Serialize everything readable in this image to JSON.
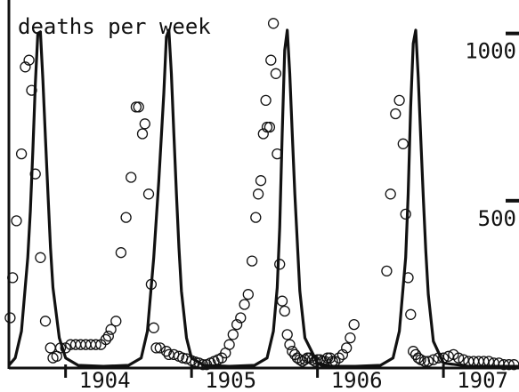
{
  "chart_data": {
    "type": "scatter",
    "title": "deaths per week",
    "xlabel": "",
    "ylabel": "",
    "xlim": [
      1903.55,
      1907.6
    ],
    "ylim": [
      0,
      1100
    ],
    "grid": false,
    "axes": {
      "y_side": "right",
      "y_ticks": [
        {
          "value": 500,
          "label": "500"
        },
        {
          "value": 1000,
          "label": "1000"
        }
      ],
      "x_ticks": [
        {
          "value": 1904.0,
          "label": "1904"
        },
        {
          "value": 1905.0,
          "label": "1905"
        },
        {
          "value": 1906.0,
          "label": "1906"
        },
        {
          "value": 1907.0,
          "label": "1907"
        }
      ]
    },
    "series": [
      {
        "kind": "line",
        "color": "#111111",
        "x": [
          1903.55,
          1903.6,
          1903.65,
          1903.7,
          1903.72,
          1903.74,
          1903.76,
          1903.78,
          1903.8,
          1903.82,
          1903.84,
          1903.86,
          1903.88,
          1903.9,
          1903.95,
          1904.0,
          1904.1,
          1904.3,
          1904.5,
          1904.6,
          1904.65,
          1904.7,
          1904.74,
          1904.78,
          1904.8,
          1904.82,
          1904.84,
          1904.86,
          1904.88,
          1904.9,
          1904.92,
          1904.96,
          1905.0,
          1905.1,
          1905.3,
          1905.5,
          1905.6,
          1905.65,
          1905.68,
          1905.7,
          1905.72,
          1905.74,
          1905.76,
          1905.78,
          1905.8,
          1905.82,
          1905.86,
          1905.9,
          1906.0,
          1906.1,
          1906.3,
          1906.5,
          1906.6,
          1906.65,
          1906.7,
          1906.72,
          1906.74,
          1906.76,
          1906.78,
          1906.8,
          1906.82,
          1906.84,
          1906.86,
          1906.88,
          1906.92,
          1907.0,
          1907.2,
          1907.4,
          1907.6
        ],
        "y": [
          8,
          30,
          110,
          330,
          470,
          650,
          850,
          1000,
          1005,
          860,
          690,
          520,
          360,
          240,
          90,
          30,
          8,
          5,
          8,
          30,
          110,
          330,
          560,
          820,
          990,
          1010,
          880,
          700,
          520,
          360,
          230,
          90,
          30,
          8,
          5,
          8,
          30,
          110,
          240,
          420,
          700,
          950,
          1010,
          880,
          700,
          520,
          230,
          90,
          15,
          5,
          5,
          8,
          30,
          110,
          330,
          520,
          780,
          970,
          1010,
          870,
          690,
          510,
          350,
          220,
          80,
          15,
          5,
          5,
          5
        ]
      },
      {
        "kind": "points",
        "color": "#111111",
        "x": [
          1903.56,
          1903.58,
          1903.61,
          1903.65,
          1903.68,
          1903.71,
          1903.73,
          1903.76,
          1903.8,
          1903.84,
          1903.88,
          1903.9,
          1903.93,
          1903.96,
          1904.0,
          1904.04,
          1904.08,
          1904.12,
          1904.16,
          1904.2,
          1904.24,
          1904.28,
          1904.32,
          1904.34,
          1904.36,
          1904.4,
          1904.44,
          1904.48,
          1904.52,
          1904.56,
          1904.58,
          1904.61,
          1904.63,
          1904.66,
          1904.68,
          1904.7,
          1904.72,
          1904.75,
          1904.8,
          1904.82,
          1904.86,
          1904.9,
          1904.93,
          1904.96,
          1905.0,
          1905.03,
          1905.06,
          1905.09,
          1905.12,
          1905.15,
          1905.18,
          1905.21,
          1905.24,
          1905.27,
          1905.3,
          1905.33,
          1905.36,
          1905.39,
          1905.42,
          1905.45,
          1905.48,
          1905.51,
          1905.53,
          1905.55,
          1905.57,
          1905.59,
          1905.6,
          1905.62,
          1905.63,
          1905.65,
          1905.67,
          1905.68,
          1905.7,
          1905.72,
          1905.74,
          1905.76,
          1905.78,
          1905.8,
          1905.82,
          1905.84,
          1905.86,
          1905.88,
          1905.9,
          1905.92,
          1905.94,
          1905.96,
          1905.98,
          1906.0,
          1906.02,
          1906.04,
          1906.06,
          1906.08,
          1906.1,
          1906.12,
          1906.14,
          1906.17,
          1906.2,
          1906.23,
          1906.26,
          1906.29,
          1906.55,
          1906.58,
          1906.62,
          1906.65,
          1906.68,
          1906.7,
          1906.72,
          1906.74,
          1906.76,
          1906.78,
          1906.8,
          1906.82,
          1906.85,
          1906.88,
          1906.92,
          1906.96,
          1907.0,
          1907.04,
          1907.08,
          1907.12,
          1907.16,
          1907.2,
          1907.24,
          1907.28,
          1907.32,
          1907.36,
          1907.4,
          1907.44,
          1907.48,
          1907.52,
          1907.56
        ],
        "y": [
          150,
          270,
          440,
          640,
          900,
          920,
          830,
          580,
          330,
          140,
          60,
          30,
          35,
          60,
          60,
          70,
          70,
          70,
          70,
          70,
          70,
          70,
          85,
          95,
          115,
          140,
          345,
          450,
          570,
          780,
          780,
          700,
          730,
          520,
          250,
          120,
          60,
          60,
          50,
          40,
          40,
          35,
          30,
          28,
          22,
          18,
          15,
          10,
          10,
          15,
          20,
          25,
          30,
          45,
          70,
          100,
          130,
          150,
          190,
          220,
          320,
          450,
          520,
          560,
          700,
          800,
          720,
          720,
          920,
          1030,
          880,
          640,
          310,
          200,
          170,
          100,
          70,
          50,
          40,
          30,
          25,
          20,
          25,
          30,
          30,
          25,
          20,
          25,
          25,
          20,
          20,
          30,
          30,
          20,
          20,
          30,
          40,
          60,
          90,
          130,
          290,
          520,
          760,
          800,
          670,
          460,
          270,
          160,
          50,
          40,
          30,
          25,
          20,
          20,
          25,
          30,
          30,
          35,
          40,
          30,
          25,
          20,
          20,
          20,
          20,
          20,
          15,
          15,
          10,
          10,
          10
        ]
      }
    ]
  }
}
